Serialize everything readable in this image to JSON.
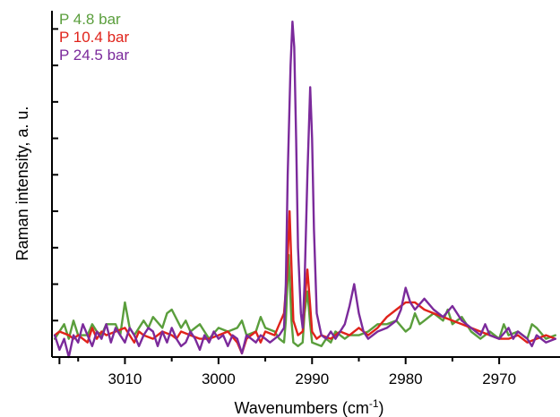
{
  "chart_data": {
    "type": "line",
    "title": "",
    "xlabel": "Wavenumbers (cm-1)",
    "xlabel_base": "Wavenumbers (cm",
    "xlabel_sup": "-1",
    "xlabel_tail": ")",
    "ylabel": "Raman intensity, a. u.",
    "x_reversed": true,
    "xlim": [
      3017.8,
      2963.5
    ],
    "ylim": [
      0,
      9.5
    ],
    "x_ticks": [
      3010,
      3000,
      2990,
      2980,
      2970
    ],
    "x_tick_labels": [
      "3010",
      "3000",
      "2990",
      "2980",
      "2970"
    ],
    "y_ticks": [
      1,
      2,
      3,
      4,
      5,
      6,
      7,
      8,
      9
    ],
    "grid": false,
    "legend_position": "top-left",
    "series": [
      {
        "name": "P 4.8 bar",
        "color": "#5a9e3c",
        "x": [
          3017.5,
          3016.5,
          3016,
          3015.5,
          3015,
          3014,
          3013.5,
          3013,
          3012.5,
          3012,
          3011,
          3010.5,
          3010,
          3009.5,
          3009,
          3008,
          3007.5,
          3007,
          3006,
          3005.5,
          3005,
          3004,
          3003.5,
          3003,
          3002,
          3001.5,
          3001,
          3000,
          2999,
          2998,
          2997.5,
          2997,
          2996,
          2995.5,
          2995,
          2994,
          2993.5,
          2993,
          2992.8,
          2992.5,
          2992.2,
          2992,
          2991.5,
          2991,
          2990.8,
          2990.5,
          2990.2,
          2990,
          2989,
          2988.5,
          2988,
          2987.5,
          2987,
          2986.5,
          2986,
          2985,
          2984,
          2983,
          2982,
          2981,
          2980,
          2979.5,
          2979,
          2978.5,
          2978,
          2977,
          2976,
          2975.5,
          2975,
          2974,
          2973,
          2972,
          2971,
          2970,
          2969.5,
          2969,
          2968,
          2967,
          2966.5,
          2966,
          2965,
          2964
        ],
        "y": [
          0.5,
          0.9,
          0.5,
          1.0,
          0.6,
          0.6,
          0.9,
          0.7,
          0.6,
          0.9,
          0.9,
          0.6,
          1.5,
          0.8,
          0.6,
          1.0,
          0.8,
          1.1,
          0.8,
          1.2,
          1.3,
          0.8,
          1.0,
          0.7,
          0.9,
          0.7,
          0.5,
          0.8,
          0.7,
          0.8,
          1.0,
          0.6,
          0.7,
          1.1,
          0.8,
          0.7,
          0.5,
          0.4,
          1.0,
          2.8,
          1.0,
          0.4,
          0.3,
          0.4,
          1.2,
          1.8,
          0.9,
          0.4,
          0.3,
          0.5,
          0.4,
          0.7,
          0.6,
          0.5,
          0.6,
          0.6,
          0.7,
          0.9,
          0.9,
          1.0,
          0.7,
          0.8,
          1.2,
          0.9,
          1.0,
          1.2,
          1.0,
          1.3,
          0.9,
          1.1,
          0.7,
          0.5,
          0.7,
          0.5,
          0.9,
          0.6,
          0.7,
          0.5,
          0.9,
          0.8,
          0.5,
          0.6
        ]
      },
      {
        "name": "P 10.4 bar",
        "color": "#e0231b",
        "x": [
          3017.5,
          3017,
          3016,
          3015.5,
          3015,
          3014,
          3013.5,
          3013,
          3012.5,
          3012,
          3011,
          3010,
          3009,
          3008.5,
          3008,
          3007,
          3006,
          3005,
          3004.5,
          3004,
          3003,
          3002,
          3001,
          3000,
          2999,
          2998,
          2997.5,
          2997,
          2996,
          2995.5,
          2995,
          2994,
          2993.5,
          2993,
          2992.7,
          2992.4,
          2992.2,
          2992,
          2991.5,
          2991,
          2990.8,
          2990.5,
          2990.2,
          2990,
          2989.5,
          2989,
          2988,
          2987,
          2986,
          2985,
          2984,
          2983,
          2982,
          2981,
          2980.5,
          2980,
          2979,
          2978,
          2977,
          2976,
          2975,
          2974,
          2973,
          2972,
          2971,
          2970,
          2969,
          2968,
          2967,
          2966,
          2965,
          2964
        ],
        "y": [
          0.6,
          0.7,
          0.6,
          0.5,
          0.6,
          0.4,
          0.8,
          0.5,
          0.7,
          0.6,
          0.7,
          0.8,
          0.4,
          0.7,
          0.6,
          0.5,
          0.7,
          0.6,
          0.5,
          0.7,
          0.6,
          0.5,
          0.5,
          0.6,
          0.7,
          0.4,
          0.1,
          0.5,
          0.7,
          0.4,
          0.7,
          0.6,
          0.9,
          1.2,
          2.2,
          4.0,
          2.5,
          1.0,
          0.6,
          0.7,
          1.5,
          2.4,
          1.4,
          0.7,
          0.5,
          0.6,
          0.5,
          0.7,
          0.6,
          0.8,
          0.6,
          0.8,
          1.1,
          1.3,
          1.4,
          1.5,
          1.5,
          1.3,
          1.2,
          1.1,
          1.0,
          0.9,
          0.8,
          0.7,
          0.6,
          0.5,
          0.5,
          0.6,
          0.4,
          0.5,
          0.6,
          0.5
        ]
      },
      {
        "name": "P 24.5 bar",
        "color": "#7b2a9b",
        "x": [
          3017.5,
          3017,
          3016.5,
          3016,
          3015.5,
          3015,
          3014.5,
          3014,
          3013.5,
          3013,
          3012.5,
          3012,
          3011.5,
          3011,
          3010.5,
          3010,
          3009.5,
          3009,
          3008.5,
          3008,
          3007.5,
          3007,
          3006.5,
          3006,
          3005.5,
          3005,
          3004.5,
          3004,
          3003.5,
          3003,
          3002.5,
          3002,
          3001.5,
          3001,
          3000.5,
          3000,
          2999.5,
          2999,
          2998.5,
          2998,
          2997.5,
          2997,
          2996.5,
          2996,
          2995.5,
          2995,
          2994.5,
          2994,
          2993.5,
          2993,
          2992.8,
          2992.6,
          2992.3,
          2992.1,
          2991.9,
          2991.7,
          2991.5,
          2991.2,
          2991,
          2990.8,
          2990.5,
          2990.2,
          2990,
          2989.8,
          2989.5,
          2989,
          2988.5,
          2988,
          2987.5,
          2987,
          2986.5,
          2986,
          2985.5,
          2985,
          2984.5,
          2984,
          2983,
          2982,
          2981,
          2980.5,
          2980,
          2979.5,
          2979,
          2978,
          2977,
          2976,
          2975,
          2974,
          2973,
          2972,
          2971.5,
          2971,
          2970,
          2969,
          2968.5,
          2968,
          2967,
          2966.5,
          2966,
          2965,
          2964
        ],
        "y": [
          0.6,
          0.2,
          0.5,
          0.0,
          0.6,
          0.4,
          0.9,
          0.6,
          0.3,
          0.7,
          0.5,
          0.9,
          0.4,
          0.8,
          0.6,
          0.4,
          0.8,
          0.6,
          0.3,
          0.6,
          0.8,
          0.7,
          0.3,
          0.7,
          0.4,
          0.8,
          0.5,
          0.3,
          0.4,
          0.7,
          0.5,
          0.2,
          0.6,
          0.4,
          0.7,
          0.5,
          0.6,
          0.3,
          0.6,
          0.5,
          0.1,
          0.6,
          0.5,
          0.4,
          0.6,
          0.5,
          0.4,
          0.5,
          0.6,
          0.8,
          2.0,
          5.0,
          8.0,
          9.2,
          8.5,
          6.0,
          3.0,
          1.2,
          0.8,
          2.0,
          5.0,
          7.4,
          6.0,
          3.5,
          1.2,
          0.6,
          0.5,
          0.7,
          0.5,
          0.7,
          0.9,
          1.4,
          2.0,
          1.2,
          0.7,
          0.5,
          0.7,
          0.8,
          1.0,
          1.3,
          1.9,
          1.5,
          1.3,
          1.6,
          1.3,
          1.1,
          1.4,
          1.0,
          0.8,
          0.6,
          0.9,
          0.6,
          0.5,
          0.8,
          0.5,
          0.7,
          0.5,
          0.3,
          0.6,
          0.4,
          0.5
        ]
      }
    ]
  }
}
